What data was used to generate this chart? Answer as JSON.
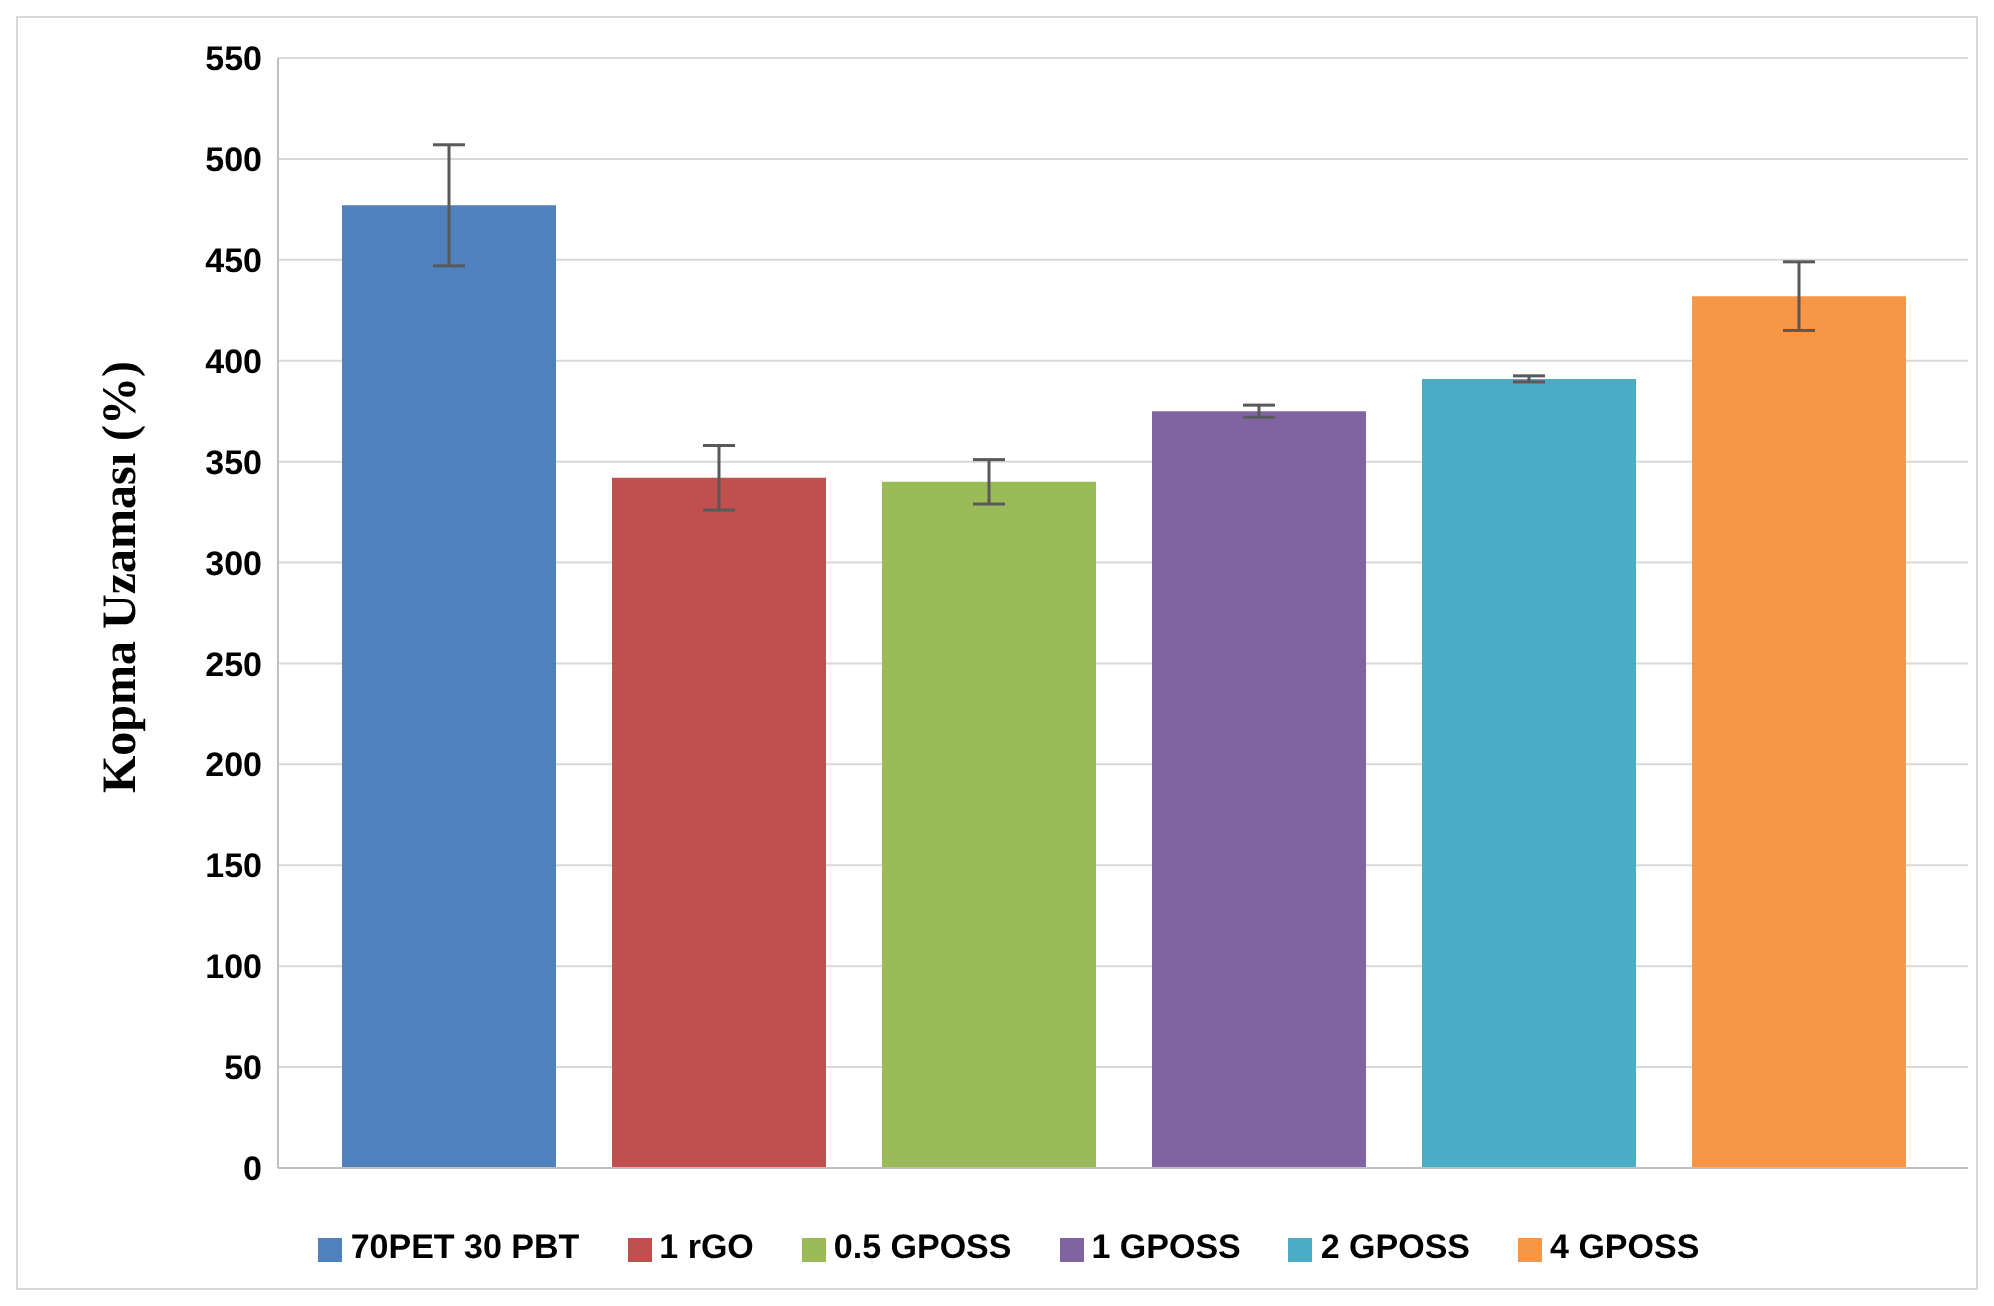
{
  "chart_data": {
    "type": "bar",
    "ylabel": "Kopma Uzaması (%)",
    "categories": [
      null
    ],
    "series": [
      {
        "name": "70PET 30 PBT",
        "color": "#4f81bd",
        "values": [
          477
        ],
        "errors": [
          30
        ]
      },
      {
        "name": "1 rGO",
        "color": "#c0504d",
        "values": [
          342
        ],
        "errors": [
          16
        ]
      },
      {
        "name": "0.5 GPOSS",
        "color": "#9bbb59",
        "values": [
          340
        ],
        "errors": [
          11
        ]
      },
      {
        "name": "1 GPOSS",
        "color": "#8064a2",
        "values": [
          375
        ],
        "errors": [
          3
        ]
      },
      {
        "name": "2 GPOSS",
        "color": "#4bacc6",
        "values": [
          391
        ],
        "errors": [
          1.5
        ]
      },
      {
        "name": "4 GPOSS",
        "color": "#f79646",
        "values": [
          432
        ],
        "errors": [
          17
        ]
      }
    ],
    "ylim": [
      0,
      550
    ],
    "yticks": [
      0,
      50,
      100,
      150,
      200,
      250,
      300,
      350,
      400,
      450,
      500,
      550
    ],
    "grid": "y",
    "legend": "bottom"
  }
}
